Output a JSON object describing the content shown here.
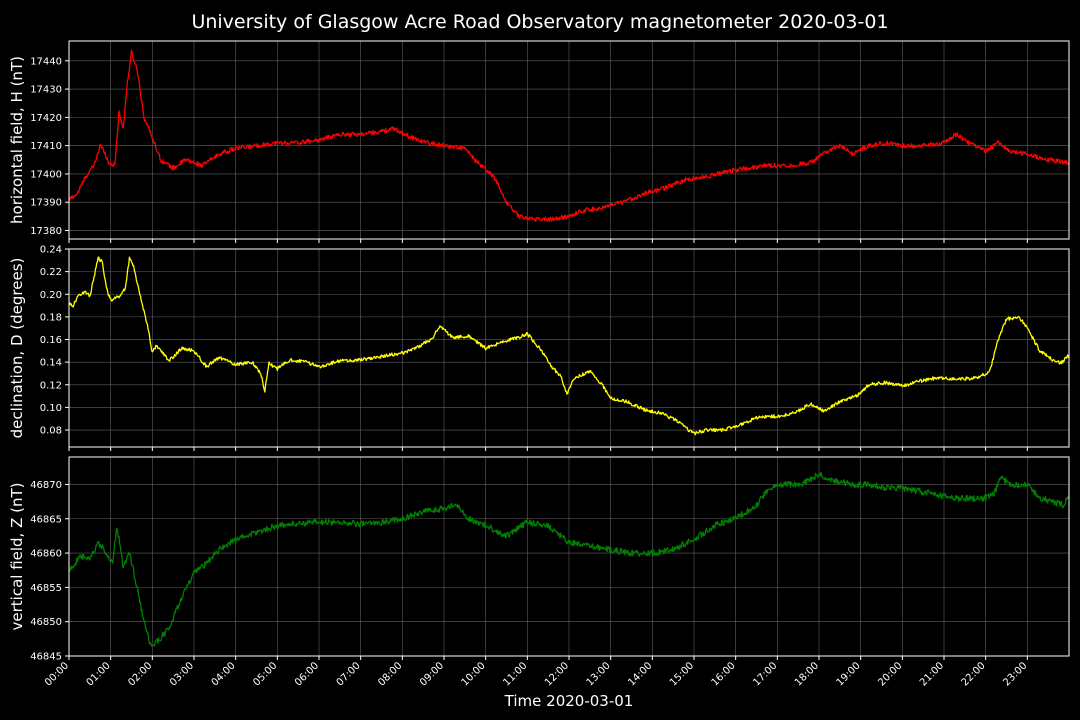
{
  "chart_data": {
    "type": "line",
    "title": "University of Glasgow Acre Road Observatory magnetometer 2020-03-01",
    "xlabel": "Time 2020-03-01",
    "x_range_hours": [
      0,
      24
    ],
    "x_tick_labels": [
      "00:00",
      "01:00",
      "02:00",
      "03:00",
      "04:00",
      "05:00",
      "06:00",
      "07:00",
      "08:00",
      "09:00",
      "10:00",
      "11:00",
      "12:00",
      "13:00",
      "14:00",
      "15:00",
      "16:00",
      "17:00",
      "18:00",
      "19:00",
      "20:00",
      "21:00",
      "22:00",
      "23:00"
    ],
    "grid": true,
    "background": "#000000",
    "panels": [
      {
        "ylabel": "horizontal field, H (nT)",
        "ylim": [
          17377,
          17447
        ],
        "yticks": [
          17380,
          17390,
          17400,
          17410,
          17420,
          17430,
          17440
        ],
        "ytick_labels": [
          "17380",
          "17390",
          "17400",
          "17410",
          "17420",
          "17430",
          "17440"
        ],
        "color": "#ff0000",
        "noise": 0.8,
        "points": [
          [
            0,
            17391
          ],
          [
            0.2,
            17393
          ],
          [
            0.4,
            17399
          ],
          [
            0.6,
            17403
          ],
          [
            0.75,
            17410
          ],
          [
            0.85,
            17408
          ],
          [
            0.95,
            17404
          ],
          [
            1.1,
            17403
          ],
          [
            1.2,
            17422
          ],
          [
            1.3,
            17416
          ],
          [
            1.4,
            17432
          ],
          [
            1.5,
            17443
          ],
          [
            1.65,
            17436
          ],
          [
            1.8,
            17420
          ],
          [
            2.0,
            17413
          ],
          [
            2.2,
            17405
          ],
          [
            2.5,
            17402
          ],
          [
            2.8,
            17405
          ],
          [
            3.2,
            17403
          ],
          [
            3.6,
            17407
          ],
          [
            4.0,
            17409
          ],
          [
            4.5,
            17410
          ],
          [
            5.0,
            17411
          ],
          [
            5.5,
            17411
          ],
          [
            6.0,
            17412
          ],
          [
            6.5,
            17414
          ],
          [
            7.0,
            17414
          ],
          [
            7.5,
            17415
          ],
          [
            7.8,
            17416
          ],
          [
            8.2,
            17413
          ],
          [
            8.6,
            17411
          ],
          [
            9.0,
            17410
          ],
          [
            9.5,
            17409
          ],
          [
            9.8,
            17404
          ],
          [
            10.2,
            17399
          ],
          [
            10.5,
            17390
          ],
          [
            10.8,
            17385
          ],
          [
            11.2,
            17384
          ],
          [
            11.6,
            17384
          ],
          [
            12.0,
            17385
          ],
          [
            12.3,
            17387
          ],
          [
            12.8,
            17388
          ],
          [
            13.3,
            17390
          ],
          [
            13.8,
            17393
          ],
          [
            14.3,
            17395
          ],
          [
            14.8,
            17398
          ],
          [
            15.3,
            17399
          ],
          [
            15.8,
            17401
          ],
          [
            16.3,
            17402
          ],
          [
            16.8,
            17403
          ],
          [
            17.3,
            17403
          ],
          [
            17.8,
            17404
          ],
          [
            18.2,
            17408
          ],
          [
            18.5,
            17410
          ],
          [
            18.8,
            17407
          ],
          [
            19.2,
            17410
          ],
          [
            19.6,
            17411
          ],
          [
            20.0,
            17410
          ],
          [
            20.5,
            17410
          ],
          [
            21.0,
            17411
          ],
          [
            21.3,
            17414
          ],
          [
            21.6,
            17411
          ],
          [
            22.0,
            17408
          ],
          [
            22.3,
            17411
          ],
          [
            22.6,
            17408
          ],
          [
            23.0,
            17407
          ],
          [
            23.5,
            17405
          ],
          [
            24.0,
            17404
          ]
        ]
      },
      {
        "ylabel": "declination, D (degrees)",
        "ylim": [
          0.065,
          0.24
        ],
        "yticks": [
          0.08,
          0.1,
          0.12,
          0.14,
          0.16,
          0.18,
          0.2,
          0.22,
          0.24
        ],
        "ytick_labels": [
          "0.08",
          "0.10",
          "0.12",
          "0.14",
          "0.16",
          "0.18",
          "0.20",
          "0.22",
          "0.24"
        ],
        "color": "#ffff00",
        "noise": 0.0015,
        "points": [
          [
            0,
            0.192
          ],
          [
            0.1,
            0.19
          ],
          [
            0.25,
            0.2
          ],
          [
            0.4,
            0.202
          ],
          [
            0.5,
            0.198
          ],
          [
            0.6,
            0.215
          ],
          [
            0.7,
            0.232
          ],
          [
            0.8,
            0.228
          ],
          [
            0.9,
            0.205
          ],
          [
            1.0,
            0.195
          ],
          [
            1.2,
            0.198
          ],
          [
            1.35,
            0.205
          ],
          [
            1.45,
            0.232
          ],
          [
            1.55,
            0.225
          ],
          [
            1.7,
            0.2
          ],
          [
            1.9,
            0.17
          ],
          [
            2.0,
            0.148
          ],
          [
            2.1,
            0.155
          ],
          [
            2.4,
            0.141
          ],
          [
            2.7,
            0.152
          ],
          [
            3.0,
            0.15
          ],
          [
            3.3,
            0.136
          ],
          [
            3.6,
            0.144
          ],
          [
            4.0,
            0.138
          ],
          [
            4.4,
            0.14
          ],
          [
            4.6,
            0.13
          ],
          [
            4.7,
            0.115
          ],
          [
            4.8,
            0.139
          ],
          [
            5.0,
            0.134
          ],
          [
            5.3,
            0.142
          ],
          [
            5.7,
            0.14
          ],
          [
            6.0,
            0.136
          ],
          [
            6.5,
            0.141
          ],
          [
            7.0,
            0.142
          ],
          [
            7.5,
            0.145
          ],
          [
            8.0,
            0.148
          ],
          [
            8.4,
            0.154
          ],
          [
            8.7,
            0.16
          ],
          [
            8.9,
            0.172
          ],
          [
            9.2,
            0.162
          ],
          [
            9.6,
            0.163
          ],
          [
            10.0,
            0.152
          ],
          [
            10.4,
            0.158
          ],
          [
            10.8,
            0.162
          ],
          [
            11.0,
            0.165
          ],
          [
            11.3,
            0.152
          ],
          [
            11.6,
            0.135
          ],
          [
            11.8,
            0.128
          ],
          [
            11.95,
            0.112
          ],
          [
            12.1,
            0.125
          ],
          [
            12.5,
            0.132
          ],
          [
            12.8,
            0.12
          ],
          [
            13.0,
            0.108
          ],
          [
            13.4,
            0.105
          ],
          [
            13.8,
            0.098
          ],
          [
            14.2,
            0.095
          ],
          [
            14.6,
            0.088
          ],
          [
            14.9,
            0.079
          ],
          [
            15.0,
            0.077
          ],
          [
            15.3,
            0.08
          ],
          [
            15.7,
            0.08
          ],
          [
            16.2,
            0.086
          ],
          [
            16.6,
            0.092
          ],
          [
            17.0,
            0.092
          ],
          [
            17.4,
            0.095
          ],
          [
            17.8,
            0.103
          ],
          [
            18.1,
            0.097
          ],
          [
            18.5,
            0.105
          ],
          [
            18.9,
            0.11
          ],
          [
            19.2,
            0.12
          ],
          [
            19.6,
            0.122
          ],
          [
            20.0,
            0.119
          ],
          [
            20.4,
            0.123
          ],
          [
            20.8,
            0.126
          ],
          [
            21.3,
            0.125
          ],
          [
            21.8,
            0.126
          ],
          [
            22.1,
            0.132
          ],
          [
            22.3,
            0.16
          ],
          [
            22.5,
            0.178
          ],
          [
            22.8,
            0.18
          ],
          [
            23.0,
            0.17
          ],
          [
            23.3,
            0.15
          ],
          [
            23.6,
            0.142
          ],
          [
            23.8,
            0.139
          ],
          [
            24.0,
            0.146
          ]
        ]
      },
      {
        "ylabel": "vertical field, Z (nT)",
        "ylim": [
          46845,
          46874
        ],
        "yticks": [
          46845,
          46850,
          46855,
          46860,
          46865,
          46870
        ],
        "ytick_labels": [
          "46845",
          "46850",
          "46855",
          "46860",
          "46865",
          "46870"
        ],
        "color": "#008000",
        "noise": 0.45,
        "points": [
          [
            0,
            46857.5
          ],
          [
            0.3,
            46859.5
          ],
          [
            0.5,
            46859
          ],
          [
            0.7,
            46861.5
          ],
          [
            0.9,
            46860
          ],
          [
            1.05,
            46858.5
          ],
          [
            1.15,
            46864
          ],
          [
            1.3,
            46858
          ],
          [
            1.45,
            46860
          ],
          [
            1.6,
            46856
          ],
          [
            1.8,
            46850
          ],
          [
            1.95,
            46846.5
          ],
          [
            2.1,
            46847
          ],
          [
            2.4,
            46849
          ],
          [
            2.7,
            46853.5
          ],
          [
            3.0,
            46857
          ],
          [
            3.3,
            46858.5
          ],
          [
            3.6,
            46860.5
          ],
          [
            4.0,
            46862
          ],
          [
            4.5,
            46863
          ],
          [
            5.0,
            46864
          ],
          [
            5.5,
            46864.3
          ],
          [
            6.0,
            46864.5
          ],
          [
            6.5,
            46864.5
          ],
          [
            7.0,
            46864.2
          ],
          [
            7.5,
            46864.5
          ],
          [
            8.0,
            46865
          ],
          [
            8.5,
            46866
          ],
          [
            9.0,
            46866.5
          ],
          [
            9.3,
            46867
          ],
          [
            9.6,
            46865
          ],
          [
            10.0,
            46864
          ],
          [
            10.5,
            46862.5
          ],
          [
            11.0,
            46864.5
          ],
          [
            11.5,
            46864
          ],
          [
            12.0,
            46861.5
          ],
          [
            12.5,
            46861
          ],
          [
            13.0,
            46860.5
          ],
          [
            13.5,
            46860
          ],
          [
            14.0,
            46860
          ],
          [
            14.5,
            46860.5
          ],
          [
            15.0,
            46862
          ],
          [
            15.5,
            46864
          ],
          [
            16.0,
            46865
          ],
          [
            16.5,
            46867
          ],
          [
            16.8,
            46869.5
          ],
          [
            17.2,
            46870
          ],
          [
            17.6,
            46870
          ],
          [
            18.0,
            46871.5
          ],
          [
            18.4,
            46870.5
          ],
          [
            18.8,
            46870
          ],
          [
            19.2,
            46870
          ],
          [
            19.6,
            46869.5
          ],
          [
            20.0,
            46869.5
          ],
          [
            20.4,
            46869
          ],
          [
            20.8,
            46868.5
          ],
          [
            21.2,
            46868
          ],
          [
            21.6,
            46868
          ],
          [
            22.0,
            46868
          ],
          [
            22.2,
            46868.5
          ],
          [
            22.35,
            46871
          ],
          [
            22.6,
            46870
          ],
          [
            23.0,
            46870
          ],
          [
            23.3,
            46868
          ],
          [
            23.6,
            46867.5
          ],
          [
            23.85,
            46867
          ],
          [
            24.0,
            46868.2
          ]
        ]
      }
    ]
  }
}
